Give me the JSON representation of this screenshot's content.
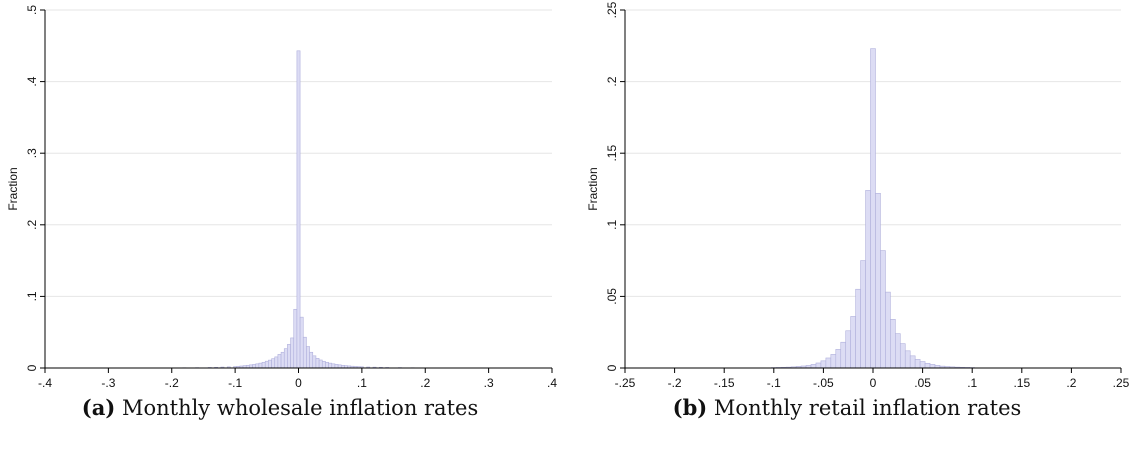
{
  "chart_data": [
    {
      "type": "bar",
      "id": "a",
      "caption_tag": "(a)",
      "caption_text": "Monthly wholesale inflation rates",
      "xlabel": "",
      "ylabel": "Fraction",
      "xlim": [
        -0.4,
        0.4
      ],
      "ylim": [
        0,
        0.5
      ],
      "x_ticks": [
        -0.4,
        -0.3,
        -0.2,
        -0.1,
        0,
        0.1,
        0.2,
        0.3,
        0.4
      ],
      "x_tick_labels": [
        "-.4",
        "-.3",
        "-.2",
        "-.1",
        "0",
        ".1",
        ".2",
        ".3",
        ".4"
      ],
      "y_ticks": [
        0,
        0.1,
        0.2,
        0.3,
        0.4,
        0.5
      ],
      "y_tick_labels": [
        "0",
        ".1",
        ".2",
        ".3",
        ".4",
        ".5"
      ],
      "grid": true,
      "bin_width": 0.005,
      "bins": [
        [
          -0.18,
          0.0004
        ],
        [
          -0.16,
          0.0005
        ],
        [
          -0.14,
          0.0008
        ],
        [
          -0.13,
          0.001
        ],
        [
          -0.12,
          0.0013
        ],
        [
          -0.11,
          0.0016
        ],
        [
          -0.1,
          0.002
        ],
        [
          -0.095,
          0.0024
        ],
        [
          -0.09,
          0.0028
        ],
        [
          -0.085,
          0.0033
        ],
        [
          -0.08,
          0.0038
        ],
        [
          -0.075,
          0.0044
        ],
        [
          -0.07,
          0.005
        ],
        [
          -0.065,
          0.0058
        ],
        [
          -0.06,
          0.0068
        ],
        [
          -0.055,
          0.008
        ],
        [
          -0.05,
          0.0095
        ],
        [
          -0.045,
          0.011
        ],
        [
          -0.04,
          0.013
        ],
        [
          -0.035,
          0.0155
        ],
        [
          -0.03,
          0.019
        ],
        [
          -0.025,
          0.022
        ],
        [
          -0.02,
          0.027
        ],
        [
          -0.015,
          0.033
        ],
        [
          -0.01,
          0.042
        ],
        [
          -0.005,
          0.082
        ],
        [
          0,
          0.443
        ],
        [
          0.005,
          0.071
        ],
        [
          0.01,
          0.043
        ],
        [
          0.015,
          0.03
        ],
        [
          0.02,
          0.022
        ],
        [
          0.025,
          0.017
        ],
        [
          0.03,
          0.0135
        ],
        [
          0.035,
          0.0112
        ],
        [
          0.04,
          0.0094
        ],
        [
          0.045,
          0.008
        ],
        [
          0.05,
          0.0068
        ],
        [
          0.055,
          0.0058
        ],
        [
          0.06,
          0.005
        ],
        [
          0.065,
          0.0044
        ],
        [
          0.07,
          0.0038
        ],
        [
          0.075,
          0.0033
        ],
        [
          0.08,
          0.0029
        ],
        [
          0.085,
          0.0025
        ],
        [
          0.09,
          0.0022
        ],
        [
          0.095,
          0.0019
        ],
        [
          0.1,
          0.0017
        ],
        [
          0.11,
          0.0014
        ],
        [
          0.12,
          0.0012
        ],
        [
          0.13,
          0.001
        ],
        [
          0.14,
          0.0008
        ],
        [
          0.16,
          0.0006
        ],
        [
          0.18,
          0.0004
        ]
      ]
    },
    {
      "type": "bar",
      "id": "b",
      "caption_tag": "(b)",
      "caption_text": "Monthly retail inflation rates",
      "xlabel": "",
      "ylabel": "Fraction",
      "xlim": [
        -0.25,
        0.25
      ],
      "ylim": [
        0,
        0.25
      ],
      "x_ticks": [
        -0.25,
        -0.2,
        -0.15,
        -0.1,
        -0.05,
        0,
        0.05,
        0.1,
        0.15,
        0.2,
        0.25
      ],
      "x_tick_labels": [
        "-.25",
        "-.2",
        "-.15",
        "-.1",
        "-.05",
        "0",
        ".05",
        ".1",
        ".15",
        ".2",
        ".25"
      ],
      "y_ticks": [
        0,
        0.05,
        0.1,
        0.15,
        0.2,
        0.25
      ],
      "y_tick_labels": [
        "0",
        ".05",
        ".1",
        ".15",
        ".2",
        ".25"
      ],
      "grid": true,
      "bin_width": 0.005,
      "bins": [
        [
          -0.1,
          0.0003
        ],
        [
          -0.095,
          0.0004
        ],
        [
          -0.09,
          0.0005
        ],
        [
          -0.085,
          0.0006
        ],
        [
          -0.08,
          0.0008
        ],
        [
          -0.075,
          0.0011
        ],
        [
          -0.07,
          0.0014
        ],
        [
          -0.065,
          0.0018
        ],
        [
          -0.06,
          0.0025
        ],
        [
          -0.055,
          0.0035
        ],
        [
          -0.05,
          0.005
        ],
        [
          -0.045,
          0.007
        ],
        [
          -0.04,
          0.0095
        ],
        [
          -0.035,
          0.013
        ],
        [
          -0.03,
          0.018
        ],
        [
          -0.025,
          0.026
        ],
        [
          -0.02,
          0.036
        ],
        [
          -0.015,
          0.055
        ],
        [
          -0.01,
          0.075
        ],
        [
          -0.005,
          0.124
        ],
        [
          0,
          0.223
        ],
        [
          0.005,
          0.122
        ],
        [
          0.01,
          0.082
        ],
        [
          0.015,
          0.053
        ],
        [
          0.02,
          0.034
        ],
        [
          0.025,
          0.024
        ],
        [
          0.03,
          0.017
        ],
        [
          0.035,
          0.012
        ],
        [
          0.04,
          0.0085
        ],
        [
          0.045,
          0.006
        ],
        [
          0.05,
          0.0045
        ],
        [
          0.055,
          0.0033
        ],
        [
          0.06,
          0.0025
        ],
        [
          0.065,
          0.0018
        ],
        [
          0.07,
          0.0013
        ],
        [
          0.075,
          0.001
        ],
        [
          0.08,
          0.0008
        ],
        [
          0.085,
          0.0006
        ],
        [
          0.09,
          0.0005
        ],
        [
          0.095,
          0.0004
        ],
        [
          0.1,
          0.0003
        ]
      ]
    }
  ],
  "style": {
    "bar_fill": "#dcdcf4",
    "bar_stroke": "#b0b0dc",
    "grid_color": "#e6e6e6",
    "axis_color": "#000000"
  }
}
